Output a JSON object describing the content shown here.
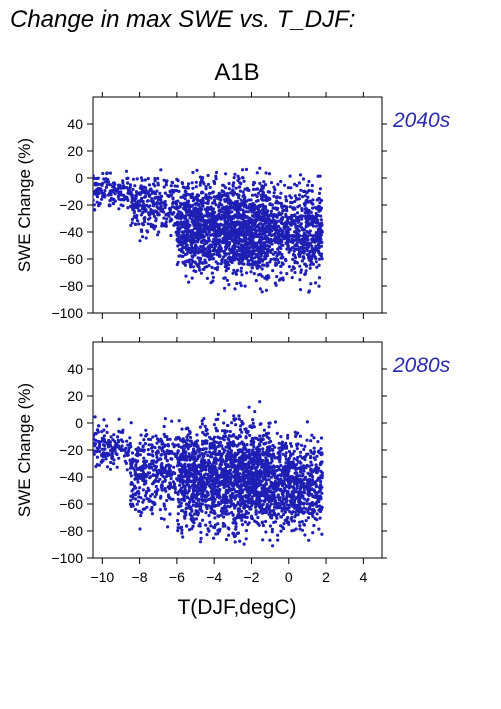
{
  "figure": {
    "title": "Change in max SWE vs. T_DJF:",
    "subtitle": "A1B",
    "x_label": "T(DJF,degC)",
    "y_label": "SWE Change (%)",
    "point_color": "#1f1fb4",
    "period_label_color": "#2b2bb0"
  },
  "chart_data": [
    {
      "type": "scatter",
      "period_label": "2040s",
      "ylabel": "SWE Change (%)",
      "xlim": [
        -10.5,
        5
      ],
      "ylim": [
        -100,
        60
      ],
      "x_ticks": [
        -10,
        -8,
        -6,
        -4,
        -2,
        0,
        2,
        4
      ],
      "x_tick_labels": [],
      "y_ticks": [
        -100,
        -80,
        -60,
        -40,
        -20,
        0,
        20,
        40
      ],
      "y_tick_labels": [
        "−100",
        "−80",
        "−60",
        "−40",
        "−20",
        "0",
        "20",
        "40"
      ],
      "grid": false,
      "point_count": 2800,
      "point_cloud": [
        {
          "x_range": [
            -10.5,
            -8.5
          ],
          "y_range": [
            -30,
            10
          ],
          "share": 0.05
        },
        {
          "x_range": [
            -8.5,
            -6.0
          ],
          "y_range": [
            -50,
            12
          ],
          "share": 0.1
        },
        {
          "x_range": [
            -6.0,
            -3.5
          ],
          "y_range": [
            -85,
            12
          ],
          "share": 0.28
        },
        {
          "x_range": [
            -3.5,
            -1.0
          ],
          "y_range": [
            -90,
            14
          ],
          "share": 0.34
        },
        {
          "x_range": [
            -1.0,
            1.8
          ],
          "y_range": [
            -88,
            10
          ],
          "share": 0.23
        }
      ]
    },
    {
      "type": "scatter",
      "period_label": "2080s",
      "ylabel": "SWE Change (%)",
      "xlabel": "T(DJF,degC)",
      "xlim": [
        -10.5,
        5
      ],
      "ylim": [
        -100,
        60
      ],
      "x_ticks": [
        -10,
        -8,
        -6,
        -4,
        -2,
        0,
        2,
        4
      ],
      "x_tick_labels": [
        "−10",
        "−8",
        "−6",
        "−4",
        "−2",
        "0",
        "2",
        "4"
      ],
      "y_ticks": [
        -100,
        -80,
        -60,
        -40,
        -20,
        0,
        20,
        40
      ],
      "y_tick_labels": [
        "−100",
        "−80",
        "−60",
        "−40",
        "−20",
        "0",
        "20",
        "40"
      ],
      "grid": false,
      "point_count": 3000,
      "point_cloud": [
        {
          "x_range": [
            -10.5,
            -8.5
          ],
          "y_range": [
            -40,
            8
          ],
          "share": 0.05
        },
        {
          "x_range": [
            -8.5,
            -6.0
          ],
          "y_range": [
            -85,
            10
          ],
          "share": 0.12
        },
        {
          "x_range": [
            -6.0,
            -3.5
          ],
          "y_range": [
            -95,
            14
          ],
          "share": 0.27
        },
        {
          "x_range": [
            -3.5,
            -1.0
          ],
          "y_range": [
            -97,
            17
          ],
          "share": 0.33
        },
        {
          "x_range": [
            -1.0,
            1.8
          ],
          "y_range": [
            -95,
            5
          ],
          "share": 0.23
        }
      ]
    }
  ]
}
